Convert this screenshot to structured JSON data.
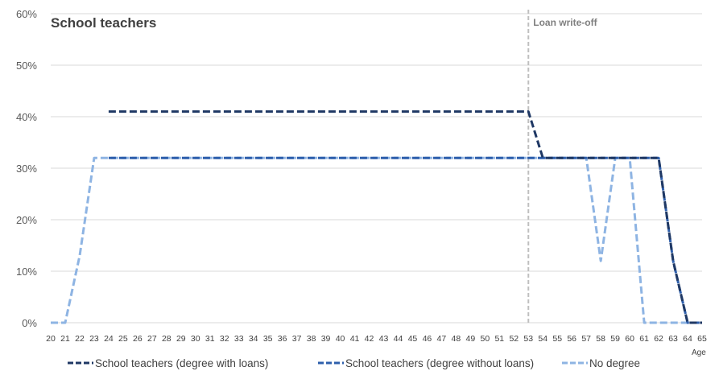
{
  "chart_data": {
    "type": "line",
    "title": "School teachers",
    "xlabel": "Age",
    "ylabel": "",
    "x": [
      20,
      21,
      22,
      23,
      24,
      25,
      26,
      27,
      28,
      29,
      30,
      31,
      32,
      33,
      34,
      35,
      36,
      37,
      38,
      39,
      40,
      41,
      42,
      43,
      44,
      45,
      46,
      47,
      48,
      49,
      50,
      51,
      52,
      53,
      54,
      55,
      56,
      57,
      58,
      59,
      60,
      61,
      62,
      63,
      64,
      65
    ],
    "ylim": [
      0,
      60
    ],
    "yticks": [
      "0%",
      "10%",
      "20%",
      "30%",
      "40%",
      "50%",
      "60%"
    ],
    "ytick_values": [
      0,
      10,
      20,
      30,
      40,
      50,
      60
    ],
    "grid": true,
    "legend_position": "bottom",
    "annotation": {
      "label": "Loan write-off",
      "x": 53
    },
    "series": [
      {
        "name": "School teachers (degree with loans)",
        "color": "#1f3864",
        "values": [
          null,
          null,
          null,
          null,
          41,
          41,
          41,
          41,
          41,
          41,
          41,
          41,
          41,
          41,
          41,
          41,
          41,
          41,
          41,
          41,
          41,
          41,
          41,
          41,
          41,
          41,
          41,
          41,
          41,
          41,
          41,
          41,
          41,
          41,
          32,
          32,
          32,
          32,
          32,
          32,
          32,
          32,
          32,
          12,
          0,
          0
        ]
      },
      {
        "name": "School teachers (degree without loans)",
        "color": "#2e5fac",
        "values": [
          null,
          null,
          null,
          null,
          32,
          32,
          32,
          32,
          32,
          32,
          32,
          32,
          32,
          32,
          32,
          32,
          32,
          32,
          32,
          32,
          32,
          32,
          32,
          32,
          32,
          32,
          32,
          32,
          32,
          32,
          32,
          32,
          32,
          32,
          32,
          32,
          32,
          32,
          32,
          32,
          32,
          32,
          32,
          12,
          0,
          0
        ]
      },
      {
        "name": "No degree",
        "color": "#8eb4e3",
        "values": [
          0,
          0,
          13,
          32,
          32,
          32,
          32,
          32,
          32,
          32,
          32,
          32,
          32,
          32,
          32,
          32,
          32,
          32,
          32,
          32,
          32,
          32,
          32,
          32,
          32,
          32,
          32,
          32,
          32,
          32,
          32,
          32,
          32,
          32,
          32,
          32,
          32,
          32,
          12,
          32,
          32,
          0,
          0,
          0,
          0,
          0
        ]
      }
    ]
  }
}
